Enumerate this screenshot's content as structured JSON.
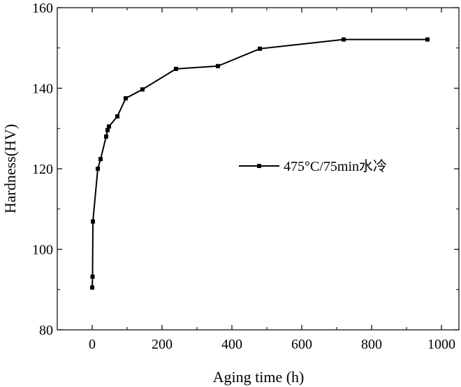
{
  "chart_data": {
    "type": "line",
    "xlabel": "Aging time (h)",
    "ylabel": "Hardness(HV)",
    "xlim": [
      -100,
      1050
    ],
    "ylim": [
      80,
      160
    ],
    "xticks": [
      0,
      200,
      400,
      600,
      800,
      1000
    ],
    "yticks": [
      80,
      100,
      120,
      140,
      160
    ],
    "grid": false,
    "legend_position": "center-right",
    "series": [
      {
        "name": "475°C/75min水冷",
        "marker": "square",
        "color": "#000000",
        "x": [
          0,
          1,
          2,
          16,
          24,
          40,
          44,
          48,
          72,
          96,
          144,
          240,
          360,
          480,
          720,
          960
        ],
        "y": [
          90.5,
          93.2,
          106.9,
          120.0,
          122.4,
          128.0,
          129.6,
          130.5,
          133.0,
          137.5,
          139.7,
          144.8,
          145.5,
          149.8,
          152.1,
          152.1
        ]
      }
    ]
  }
}
